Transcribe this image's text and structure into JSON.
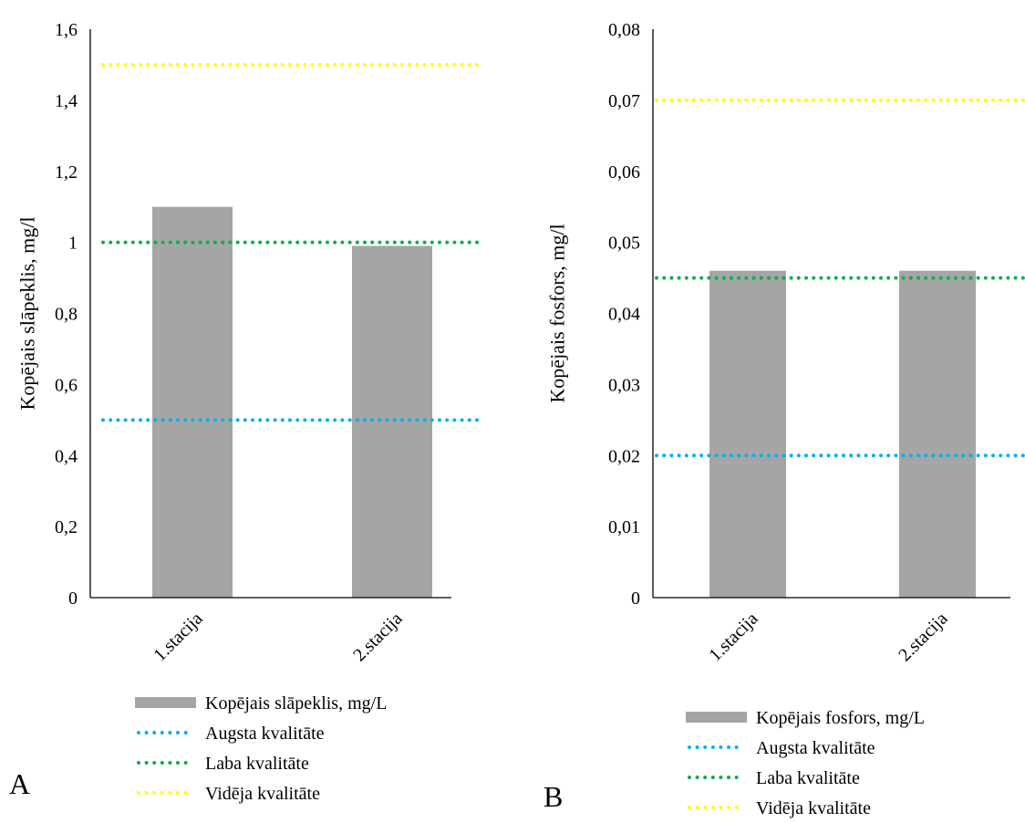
{
  "chart_data": [
    {
      "type": "bar",
      "panel_label": "A",
      "categories": [
        "1.stacija",
        "2.stacija"
      ],
      "values": [
        1.1,
        0.99
      ],
      "ylabel": "Kopējais slāpeklis, mg/l",
      "ylim": [
        0,
        1.6
      ],
      "ytick_labels": [
        "0",
        "0,2",
        "0,4",
        "0,6",
        "0,8",
        "1",
        "1,2",
        "1,4",
        "1,6"
      ],
      "ytick_values": [
        0,
        0.2,
        0.4,
        0.6,
        0.8,
        1.0,
        1.2,
        1.4,
        1.6
      ],
      "bar_series_name": "Kopējais slāpeklis, mg/L",
      "lines": [
        {
          "name": "Augsta kvalitāte",
          "value": 0.5,
          "color": "#00B0F0"
        },
        {
          "name": "Laba kvalitāte",
          "value": 1.0,
          "color": "#00B050"
        },
        {
          "name": "Vidēja kvalitāte",
          "value": 1.5,
          "color": "#FFFF00"
        }
      ],
      "grid": false,
      "legend": "bottom"
    },
    {
      "type": "bar",
      "panel_label": "B",
      "categories": [
        "1.stacija",
        "2.stacija"
      ],
      "values": [
        0.046,
        0.046
      ],
      "ylabel": "Kopējais fosfors, mg/l",
      "ylim": [
        0,
        0.08
      ],
      "ytick_labels": [
        "0",
        "0,01",
        "0,02",
        "0,03",
        "0,04",
        "0,05",
        "0,06",
        "0,07",
        "0,08"
      ],
      "ytick_values": [
        0,
        0.01,
        0.02,
        0.03,
        0.04,
        0.05,
        0.06,
        0.07,
        0.08
      ],
      "bar_series_name": "Kopējais fosfors, mg/L",
      "lines": [
        {
          "name": "Augsta kvalitāte",
          "value": 0.02,
          "color": "#00B0F0"
        },
        {
          "name": "Laba kvalitāte",
          "value": 0.045,
          "color": "#00B050"
        },
        {
          "name": "Vidēja kvalitāte",
          "value": 0.07,
          "color": "#FFFF00"
        }
      ],
      "grid": false,
      "legend": "bottom"
    }
  ],
  "colors": {
    "bar": "#A5A5A5",
    "axis": "#000000"
  }
}
